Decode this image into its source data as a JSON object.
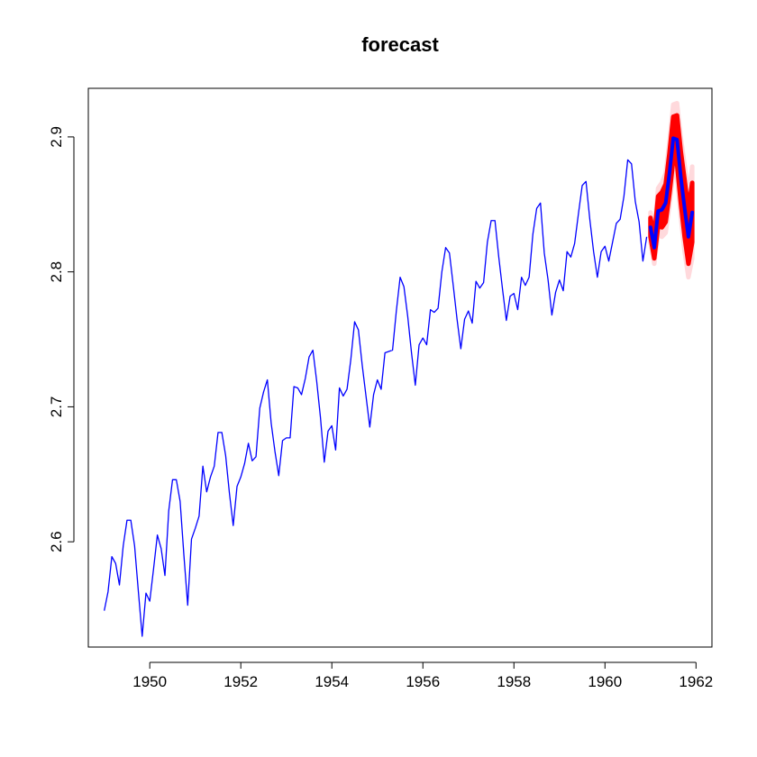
{
  "chart_data": {
    "type": "line",
    "title": "forecast",
    "xlabel": "",
    "ylabel": "",
    "xlim": [
      1948.65,
      1962.35
    ],
    "ylim": [
      2.522,
      2.936
    ],
    "x_ticks": [
      1950,
      1952,
      1954,
      1956,
      1958,
      1960,
      1962
    ],
    "y_ticks": [
      2.6,
      2.7,
      2.8,
      2.9
    ],
    "grid": false,
    "colors": {
      "history": "#0000ff",
      "forecast": "#0000ff",
      "interval_80": "#ff0000",
      "interval_95": "#ffd9dc"
    },
    "history": {
      "start": 1949,
      "frequency": 12,
      "values": [
        2.549,
        2.563,
        2.589,
        2.584,
        2.568,
        2.597,
        2.616,
        2.616,
        2.597,
        2.563,
        2.53,
        2.562,
        2.556,
        2.58,
        2.605,
        2.595,
        2.575,
        2.623,
        2.646,
        2.646,
        2.63,
        2.59,
        2.553,
        2.602,
        2.61,
        2.619,
        2.656,
        2.637,
        2.648,
        2.656,
        2.681,
        2.681,
        2.664,
        2.636,
        2.612,
        2.641,
        2.648,
        2.658,
        2.673,
        2.66,
        2.663,
        2.699,
        2.711,
        2.72,
        2.688,
        2.667,
        2.649,
        2.675,
        2.677,
        2.677,
        2.715,
        2.714,
        2.709,
        2.721,
        2.737,
        2.742,
        2.719,
        2.692,
        2.659,
        2.682,
        2.686,
        2.668,
        2.714,
        2.708,
        2.713,
        2.735,
        2.763,
        2.757,
        2.731,
        2.708,
        2.685,
        2.709,
        2.72,
        2.713,
        2.74,
        2.741,
        2.742,
        2.771,
        2.796,
        2.789,
        2.767,
        2.74,
        2.716,
        2.746,
        2.751,
        2.746,
        2.772,
        2.77,
        2.773,
        2.8,
        2.818,
        2.814,
        2.79,
        2.765,
        2.743,
        2.765,
        2.771,
        2.762,
        2.793,
        2.788,
        2.792,
        2.822,
        2.838,
        2.838,
        2.811,
        2.787,
        2.764,
        2.782,
        2.784,
        2.772,
        2.796,
        2.79,
        2.796,
        2.828,
        2.847,
        2.851,
        2.814,
        2.794,
        2.768,
        2.785,
        2.794,
        2.786,
        2.815,
        2.811,
        2.821,
        2.843,
        2.864,
        2.867,
        2.839,
        2.815,
        2.796,
        2.815,
        2.819,
        2.808,
        2.822,
        2.836,
        2.839,
        2.856,
        2.883,
        2.88,
        2.852,
        2.837,
        2.808,
        2.826
      ]
    },
    "forecast": {
      "start": 1961,
      "frequency": 12,
      "values": [
        2.833,
        2.818,
        2.845,
        2.846,
        2.851,
        2.873,
        2.899,
        2.898,
        2.87,
        2.847,
        2.826,
        2.844
      ],
      "lo80": [
        2.826,
        2.81,
        2.834,
        2.833,
        2.837,
        2.858,
        2.883,
        2.88,
        2.851,
        2.826,
        2.806,
        2.822
      ],
      "hi80": [
        2.84,
        2.826,
        2.856,
        2.859,
        2.865,
        2.888,
        2.915,
        2.916,
        2.889,
        2.868,
        2.846,
        2.866
      ],
      "lo95": [
        2.822,
        2.806,
        2.828,
        2.826,
        2.829,
        2.85,
        2.874,
        2.871,
        2.841,
        2.815,
        2.796,
        2.81
      ],
      "hi95": [
        2.844,
        2.83,
        2.862,
        2.866,
        2.873,
        2.896,
        2.924,
        2.925,
        2.899,
        2.879,
        2.856,
        2.878
      ]
    }
  }
}
